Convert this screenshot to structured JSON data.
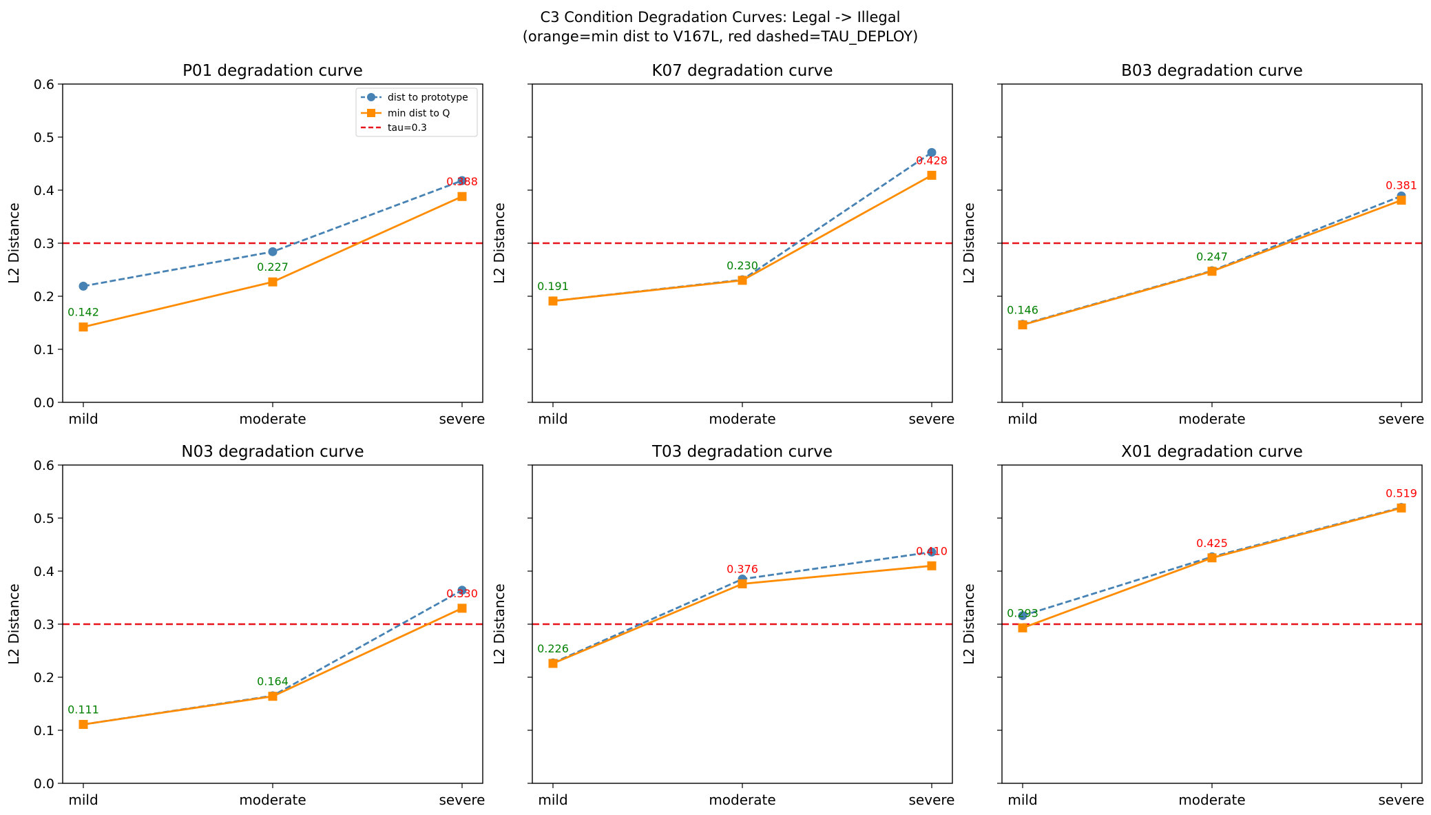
{
  "figure": {
    "suptitle_line1": "C3 Condition Degradation Curves: Legal -> Illegal",
    "suptitle_line2": "(orange=min dist to V167L, red dashed=TAU_DEPLOY)"
  },
  "colors": {
    "prototype": "#4682b4",
    "minq": "#ff8c00",
    "tau": "#e8141b",
    "label_below_tau": "#008000",
    "label_above_tau": "#ff0000"
  },
  "chart_data": [
    {
      "type": "line",
      "title": "P01 degradation curve",
      "categories": [
        "mild",
        "moderate",
        "severe"
      ],
      "ylabel": "L2 Distance",
      "ylim": [
        0,
        0.6
      ],
      "yticks": [
        "0.0",
        "0.1",
        "0.2",
        "0.3",
        "0.4",
        "0.5",
        "0.6"
      ],
      "tau": 0.3,
      "legend": {
        "placement": "upper right",
        "entries": [
          "dist to prototype",
          "min dist to Q",
          "tau=0.3"
        ]
      },
      "series": [
        {
          "name": "dist to prototype",
          "style": "dashed-circle",
          "values": [
            0.219,
            0.284,
            0.418
          ]
        },
        {
          "name": "min dist to Q",
          "style": "solid-square",
          "values": [
            0.142,
            0.227,
            0.388
          ]
        }
      ],
      "labels": [
        "0.142",
        "0.227",
        "0.388"
      ]
    },
    {
      "type": "line",
      "title": "K07 degradation curve",
      "categories": [
        "mild",
        "moderate",
        "severe"
      ],
      "ylabel": "L2 Distance",
      "ylim": [
        0,
        0.6
      ],
      "tau": 0.3,
      "series": [
        {
          "name": "dist to prototype",
          "style": "dashed-circle",
          "values": [
            0.191,
            0.231,
            0.471
          ]
        },
        {
          "name": "min dist to Q",
          "style": "solid-square",
          "values": [
            0.191,
            0.23,
            0.428
          ]
        }
      ],
      "labels": [
        "0.191",
        "0.230",
        "0.428"
      ]
    },
    {
      "type": "line",
      "title": "B03 degradation curve",
      "categories": [
        "mild",
        "moderate",
        "severe"
      ],
      "ylabel": "L2 Distance",
      "ylim": [
        0,
        0.6
      ],
      "tau": 0.3,
      "series": [
        {
          "name": "dist to prototype",
          "style": "dashed-circle",
          "values": [
            0.147,
            0.248,
            0.389
          ]
        },
        {
          "name": "min dist to Q",
          "style": "solid-square",
          "values": [
            0.146,
            0.247,
            0.381
          ]
        }
      ],
      "labels": [
        "0.146",
        "0.247",
        "0.381"
      ]
    },
    {
      "type": "line",
      "title": "N03 degradation curve",
      "categories": [
        "mild",
        "moderate",
        "severe"
      ],
      "ylabel": "L2 Distance",
      "ylim": [
        0,
        0.6
      ],
      "yticks": [
        "0.0",
        "0.1",
        "0.2",
        "0.3",
        "0.4",
        "0.5",
        "0.6"
      ],
      "tau": 0.3,
      "series": [
        {
          "name": "dist to prototype",
          "style": "dashed-circle",
          "values": [
            0.111,
            0.165,
            0.364
          ]
        },
        {
          "name": "min dist to Q",
          "style": "solid-square",
          "values": [
            0.111,
            0.164,
            0.33
          ]
        }
      ],
      "labels": [
        "0.111",
        "0.164",
        "0.330"
      ]
    },
    {
      "type": "line",
      "title": "T03 degradation curve",
      "categories": [
        "mild",
        "moderate",
        "severe"
      ],
      "ylabel": "L2 Distance",
      "ylim": [
        0,
        0.6
      ],
      "tau": 0.3,
      "series": [
        {
          "name": "dist to prototype",
          "style": "dashed-circle",
          "values": [
            0.227,
            0.385,
            0.436
          ]
        },
        {
          "name": "min dist to Q",
          "style": "solid-square",
          "values": [
            0.226,
            0.376,
            0.41
          ]
        }
      ],
      "labels": [
        "0.226",
        "0.376",
        "0.410"
      ]
    },
    {
      "type": "line",
      "title": "X01 degradation curve",
      "categories": [
        "mild",
        "moderate",
        "severe"
      ],
      "ylabel": "L2 Distance",
      "ylim": [
        0,
        0.6
      ],
      "tau": 0.3,
      "series": [
        {
          "name": "dist to prototype",
          "style": "dashed-circle",
          "values": [
            0.316,
            0.427,
            0.52
          ]
        },
        {
          "name": "min dist to Q",
          "style": "solid-square",
          "values": [
            0.293,
            0.425,
            0.519
          ]
        }
      ],
      "labels": [
        "0.293",
        "0.425",
        "0.519"
      ]
    }
  ]
}
